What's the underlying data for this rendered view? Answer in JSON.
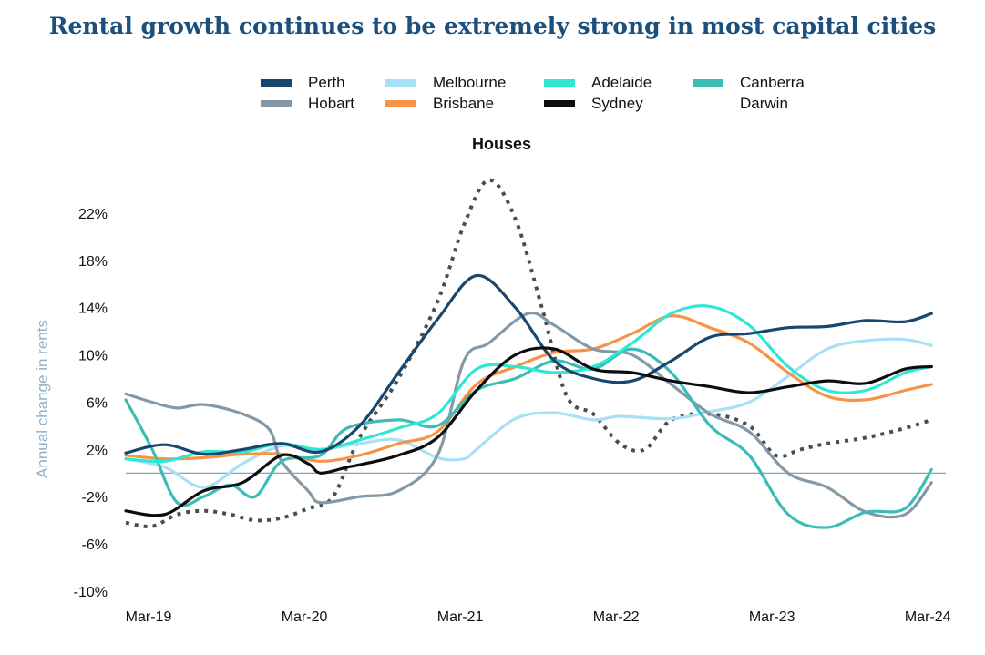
{
  "chart_data": {
    "type": "line",
    "title": "Rental growth continues to be extremely strong in most capital cities",
    "subtitle": "Houses",
    "ylabel": "Annual change in rents",
    "xlabel": "",
    "x_ticks": [
      "Mar-19",
      "Mar-20",
      "Mar-21",
      "Mar-22",
      "Mar-23",
      "Mar-24"
    ],
    "x_range": [
      2019.0,
      2024.25
    ],
    "y_ticks": [
      -10,
      -6,
      -2,
      2,
      6,
      10,
      14,
      18,
      22
    ],
    "y_tick_labels": [
      "-10%",
      "-6%",
      "-2%",
      "2%",
      "6%",
      "10%",
      "14%",
      "18%",
      "22%"
    ],
    "ylim": [
      -11,
      26
    ],
    "zero_line": true,
    "grid": false,
    "legend_position": "top",
    "series": [
      {
        "name": "Perth",
        "color": "#17466e",
        "dash": "solid",
        "points": [
          [
            2019.0,
            1.7
          ],
          [
            2019.25,
            2.4
          ],
          [
            2019.5,
            1.6
          ],
          [
            2019.75,
            2.0
          ],
          [
            2020.0,
            2.5
          ],
          [
            2020.25,
            1.8
          ],
          [
            2020.5,
            4.0
          ],
          [
            2020.75,
            8.5
          ],
          [
            2021.0,
            13.0
          ],
          [
            2021.25,
            16.7
          ],
          [
            2021.5,
            14.0
          ],
          [
            2021.75,
            9.5
          ],
          [
            2022.0,
            8.0
          ],
          [
            2022.25,
            7.8
          ],
          [
            2022.5,
            9.5
          ],
          [
            2022.75,
            11.5
          ],
          [
            2023.0,
            11.8
          ],
          [
            2023.25,
            12.3
          ],
          [
            2023.5,
            12.4
          ],
          [
            2023.75,
            12.9
          ],
          [
            2024.0,
            12.8
          ],
          [
            2024.17,
            13.5
          ]
        ]
      },
      {
        "name": "Melbourne",
        "color": "#a8e0f7",
        "dash": "solid",
        "points": [
          [
            2019.0,
            1.2
          ],
          [
            2019.25,
            0.5
          ],
          [
            2019.5,
            -1.2
          ],
          [
            2019.75,
            0.8
          ],
          [
            2020.0,
            2.3
          ],
          [
            2020.25,
            2.0
          ],
          [
            2020.5,
            2.5
          ],
          [
            2020.75,
            2.8
          ],
          [
            2021.0,
            1.3
          ],
          [
            2021.17,
            1.2
          ],
          [
            2021.25,
            2.0
          ],
          [
            2021.5,
            4.6
          ],
          [
            2021.75,
            5.1
          ],
          [
            2022.0,
            4.5
          ],
          [
            2022.17,
            4.8
          ],
          [
            2022.5,
            4.6
          ],
          [
            2022.75,
            5.2
          ],
          [
            2023.0,
            6.0
          ],
          [
            2023.25,
            8.2
          ],
          [
            2023.5,
            10.5
          ],
          [
            2023.75,
            11.2
          ],
          [
            2024.0,
            11.3
          ],
          [
            2024.17,
            10.8
          ]
        ]
      },
      {
        "name": "Adelaide",
        "color": "#2ee8d3",
        "dash": "solid",
        "points": [
          [
            2019.0,
            1.2
          ],
          [
            2019.25,
            1.0
          ],
          [
            2019.5,
            1.8
          ],
          [
            2019.75,
            1.8
          ],
          [
            2020.0,
            2.5
          ],
          [
            2020.25,
            2.0
          ],
          [
            2020.5,
            2.8
          ],
          [
            2020.75,
            3.8
          ],
          [
            2021.0,
            5.0
          ],
          [
            2021.25,
            8.8
          ],
          [
            2021.5,
            9.0
          ],
          [
            2021.75,
            8.5
          ],
          [
            2022.0,
            9.0
          ],
          [
            2022.25,
            11.0
          ],
          [
            2022.5,
            13.5
          ],
          [
            2022.75,
            14.1
          ],
          [
            2023.0,
            12.5
          ],
          [
            2023.25,
            9.0
          ],
          [
            2023.5,
            7.0
          ],
          [
            2023.75,
            7.0
          ],
          [
            2024.0,
            8.5
          ],
          [
            2024.17,
            9.0
          ]
        ]
      },
      {
        "name": "Canberra",
        "color": "#3bbcb4",
        "dash": "solid",
        "points": [
          [
            2019.0,
            6.2
          ],
          [
            2019.17,
            2.0
          ],
          [
            2019.33,
            -2.5
          ],
          [
            2019.5,
            -2.0
          ],
          [
            2019.67,
            -1.0
          ],
          [
            2019.83,
            -2.0
          ],
          [
            2020.0,
            1.0
          ],
          [
            2020.25,
            1.5
          ],
          [
            2020.42,
            3.8
          ],
          [
            2020.75,
            4.5
          ],
          [
            2021.0,
            4.0
          ],
          [
            2021.25,
            7.0
          ],
          [
            2021.5,
            8.0
          ],
          [
            2021.75,
            9.5
          ],
          [
            2022.0,
            8.8
          ],
          [
            2022.25,
            10.5
          ],
          [
            2022.5,
            8.5
          ],
          [
            2022.75,
            4.0
          ],
          [
            2023.0,
            1.5
          ],
          [
            2023.25,
            -3.5
          ],
          [
            2023.5,
            -4.6
          ],
          [
            2023.75,
            -3.3
          ],
          [
            2024.0,
            -3.0
          ],
          [
            2024.17,
            0.3
          ]
        ]
      },
      {
        "name": "Hobart",
        "color": "#8499a7",
        "dash": "solid",
        "points": [
          [
            2019.0,
            6.7
          ],
          [
            2019.17,
            6.0
          ],
          [
            2019.33,
            5.5
          ],
          [
            2019.5,
            5.8
          ],
          [
            2019.75,
            5.0
          ],
          [
            2019.92,
            3.7
          ],
          [
            2020.0,
            1.0
          ],
          [
            2020.17,
            -1.5
          ],
          [
            2020.25,
            -2.5
          ],
          [
            2020.5,
            -2.0
          ],
          [
            2020.75,
            -1.5
          ],
          [
            2021.0,
            1.5
          ],
          [
            2021.17,
            9.5
          ],
          [
            2021.33,
            11.0
          ],
          [
            2021.58,
            13.5
          ],
          [
            2021.75,
            12.5
          ],
          [
            2022.0,
            10.5
          ],
          [
            2022.25,
            10.0
          ],
          [
            2022.5,
            7.5
          ],
          [
            2022.75,
            5.0
          ],
          [
            2023.0,
            3.5
          ],
          [
            2023.25,
            0.0
          ],
          [
            2023.5,
            -1.2
          ],
          [
            2023.75,
            -3.3
          ],
          [
            2024.0,
            -3.5
          ],
          [
            2024.17,
            -0.8
          ]
        ]
      },
      {
        "name": "Brisbane",
        "color": "#f79347",
        "dash": "solid",
        "points": [
          [
            2019.0,
            1.5
          ],
          [
            2019.25,
            1.2
          ],
          [
            2019.5,
            1.3
          ],
          [
            2019.75,
            1.6
          ],
          [
            2020.0,
            1.6
          ],
          [
            2020.25,
            1.0
          ],
          [
            2020.5,
            1.5
          ],
          [
            2020.75,
            2.5
          ],
          [
            2021.0,
            3.5
          ],
          [
            2021.25,
            7.5
          ],
          [
            2021.5,
            9.0
          ],
          [
            2021.75,
            10.2
          ],
          [
            2022.0,
            10.5
          ],
          [
            2022.25,
            11.8
          ],
          [
            2022.5,
            13.3
          ],
          [
            2022.75,
            12.3
          ],
          [
            2023.0,
            11.0
          ],
          [
            2023.25,
            8.5
          ],
          [
            2023.5,
            6.5
          ],
          [
            2023.75,
            6.2
          ],
          [
            2024.0,
            7.0
          ],
          [
            2024.17,
            7.5
          ]
        ]
      },
      {
        "name": "Sydney",
        "color": "#0d0d0d",
        "dash": "solid",
        "points": [
          [
            2019.0,
            -3.2
          ],
          [
            2019.25,
            -3.5
          ],
          [
            2019.5,
            -1.5
          ],
          [
            2019.75,
            -0.8
          ],
          [
            2020.0,
            1.5
          ],
          [
            2020.17,
            0.8
          ],
          [
            2020.25,
            0.0
          ],
          [
            2020.42,
            0.5
          ],
          [
            2020.5,
            0.7
          ],
          [
            2020.75,
            1.5
          ],
          [
            2021.0,
            3.0
          ],
          [
            2021.25,
            7.0
          ],
          [
            2021.5,
            10.0
          ],
          [
            2021.75,
            10.5
          ],
          [
            2022.0,
            8.8
          ],
          [
            2022.25,
            8.5
          ],
          [
            2022.5,
            7.8
          ],
          [
            2022.75,
            7.3
          ],
          [
            2023.0,
            6.8
          ],
          [
            2023.25,
            7.3
          ],
          [
            2023.5,
            7.8
          ],
          [
            2023.75,
            7.6
          ],
          [
            2024.0,
            8.8
          ],
          [
            2024.17,
            9.0
          ]
        ]
      },
      {
        "name": "Darwin",
        "color": "#4d4d4d",
        "dash": "dotted",
        "points": [
          [
            2019.0,
            -4.2
          ],
          [
            2019.17,
            -4.5
          ],
          [
            2019.33,
            -3.5
          ],
          [
            2019.5,
            -3.2
          ],
          [
            2019.67,
            -3.5
          ],
          [
            2019.83,
            -4.0
          ],
          [
            2020.0,
            -3.8
          ],
          [
            2020.17,
            -3.0
          ],
          [
            2020.33,
            -2.0
          ],
          [
            2020.5,
            3.0
          ],
          [
            2020.75,
            8.0
          ],
          [
            2021.0,
            14.5
          ],
          [
            2021.17,
            21.0
          ],
          [
            2021.33,
            24.8
          ],
          [
            2021.5,
            21.5
          ],
          [
            2021.67,
            14.0
          ],
          [
            2021.83,
            6.5
          ],
          [
            2022.0,
            5.0
          ],
          [
            2022.17,
            2.5
          ],
          [
            2022.33,
            2.0
          ],
          [
            2022.5,
            4.5
          ],
          [
            2022.75,
            5.0
          ],
          [
            2023.0,
            4.0
          ],
          [
            2023.17,
            1.5
          ],
          [
            2023.33,
            2.0
          ],
          [
            2023.5,
            2.5
          ],
          [
            2023.75,
            3.0
          ],
          [
            2024.0,
            3.8
          ],
          [
            2024.17,
            4.5
          ]
        ]
      }
    ]
  }
}
